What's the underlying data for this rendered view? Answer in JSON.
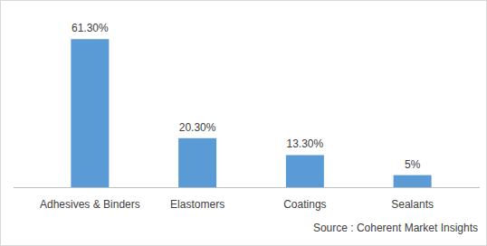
{
  "chart_data": {
    "type": "bar",
    "categories": [
      "Adhesives & Binders",
      "Elastomers",
      "Coatings",
      "Sealants"
    ],
    "values": [
      61.3,
      20.3,
      13.3,
      5
    ],
    "value_labels": [
      "61.30%",
      "20.30%",
      "13.30%",
      "5%"
    ],
    "color": "#5b9bd5",
    "ylim": [
      0,
      70
    ],
    "data_labels": true,
    "tick_labels": "x",
    "grid": false,
    "annotations": [
      "Source : Coherent Market Insights"
    ]
  }
}
